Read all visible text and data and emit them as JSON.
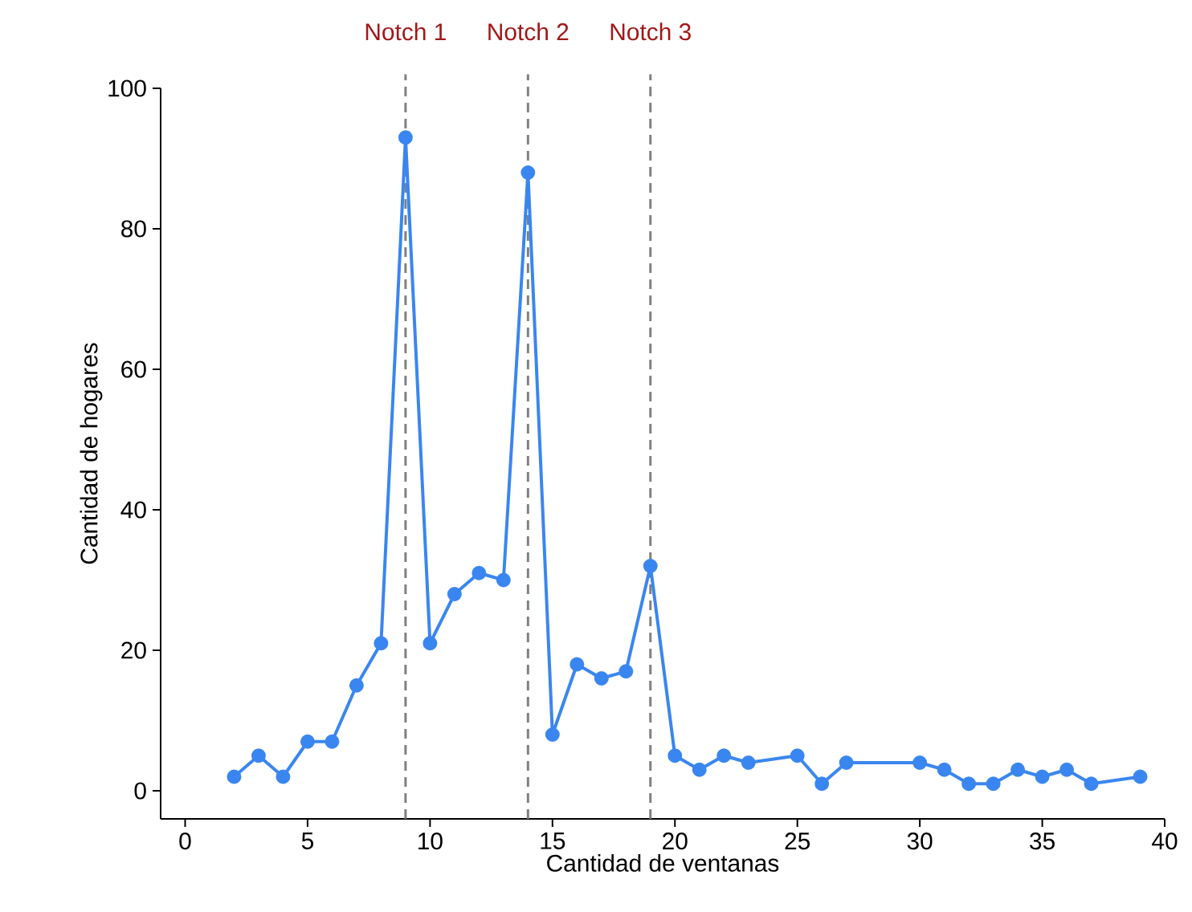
{
  "chart_data": {
    "type": "line",
    "xlabel": "Cantidad de ventanas",
    "ylabel": "Cantidad de hogares",
    "x": [
      2,
      3,
      4,
      5,
      6,
      7,
      8,
      9,
      10,
      11,
      12,
      13,
      14,
      15,
      16,
      17,
      18,
      19,
      20,
      21,
      22,
      23,
      25,
      26,
      27,
      30,
      31,
      32,
      33,
      34,
      35,
      36,
      37,
      39
    ],
    "series": [
      {
        "color": "#3a86f0",
        "values": [
          2,
          5,
          2,
          7,
          7,
          15,
          21,
          93,
          21,
          28,
          31,
          30,
          88,
          8,
          18,
          16,
          17,
          32,
          5,
          3,
          5,
          4,
          5,
          1,
          4,
          4,
          3,
          1,
          1,
          3,
          2,
          3,
          1,
          2
        ]
      }
    ],
    "xlim": [
      -1,
      40
    ],
    "ylim": [
      -4,
      100
    ],
    "xticks": [
      0,
      5,
      10,
      15,
      20,
      25,
      30,
      35,
      40
    ],
    "yticks": [
      0,
      20,
      40,
      60,
      80,
      100
    ],
    "marker": "circle",
    "line_style": "solid",
    "grid": false,
    "ref_lines": [
      {
        "axis": "x",
        "value": 9,
        "label": "Notch 1",
        "color": "#808080",
        "line_style": "dashed"
      },
      {
        "axis": "x",
        "value": 14,
        "label": "Notch 2",
        "color": "#808080",
        "line_style": "dashed"
      },
      {
        "axis": "x",
        "value": 19,
        "label": "Notch 3",
        "color": "#808080",
        "line_style": "dashed"
      }
    ]
  }
}
